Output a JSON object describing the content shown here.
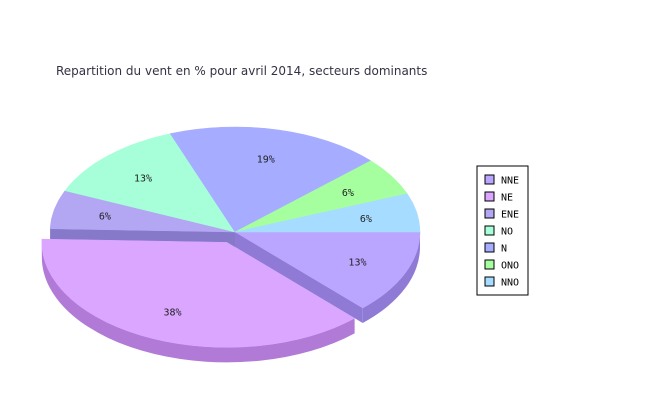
{
  "chart_data": {
    "type": "pie",
    "title": "Repartition du vent en % pour avril 2014, secteurs dominants",
    "slices": [
      {
        "name": "NNE",
        "value": 13,
        "label": "13%",
        "color": "#bba6ff",
        "side_color": "#8f7ad6",
        "exploded": false
      },
      {
        "name": "NE",
        "value": 38,
        "label": "38%",
        "color": "#dba6ff",
        "side_color": "#b07ad6",
        "exploded": true
      },
      {
        "name": "ENE",
        "value": 6,
        "label": "6%",
        "color": "#b3a6f2",
        "side_color": "#8779c9",
        "exploded": false
      },
      {
        "name": "NO",
        "value": 13,
        "label": "13%",
        "color": "#a6ffd9",
        "side_color": "#7ad6b0",
        "exploded": false
      },
      {
        "name": "N",
        "value": 19,
        "label": "19%",
        "color": "#a6acff",
        "side_color": "#7a80d6",
        "exploded": false
      },
      {
        "name": "ONO",
        "value": 6,
        "label": "6%",
        "color": "#a6ff9f",
        "side_color": "#7ad674",
        "exploded": false
      },
      {
        "name": "NNO",
        "value": 6,
        "label": "6%",
        "color": "#a6dcff",
        "side_color": "#7ab0d6",
        "exploded": false
      }
    ],
    "legend": {
      "placement": "right",
      "entries": [
        "NNE",
        "NE",
        "ENE",
        "NO",
        "N",
        "ONO",
        "NNO"
      ]
    }
  }
}
